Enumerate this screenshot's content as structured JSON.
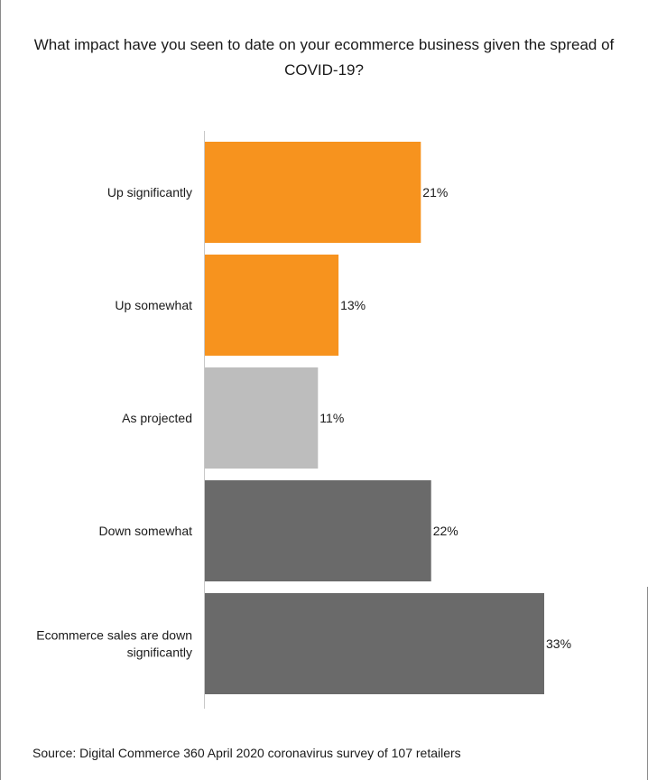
{
  "chart_data": {
    "type": "bar",
    "orientation": "horizontal",
    "title": "What impact have you seen to date on your ecommerce business given the spread of COVID-19?",
    "categories": [
      "Up significantly",
      "Up somewhat",
      "As projected",
      "Down somewhat",
      "Ecommerce sales are down significantly"
    ],
    "values": [
      21,
      13,
      11,
      22,
      33
    ],
    "value_labels": [
      "21%",
      "13%",
      "11%",
      "22%",
      "33%"
    ],
    "colors": [
      "#f7931e",
      "#f7931e",
      "#bdbdbd",
      "#6a6a6a",
      "#6a6a6a"
    ],
    "xlim": [
      0,
      33
    ],
    "grid": false,
    "legend": "none"
  },
  "source": "Source: Digital Commerce 360 April 2020 coronavirus survey of 107 retailers"
}
